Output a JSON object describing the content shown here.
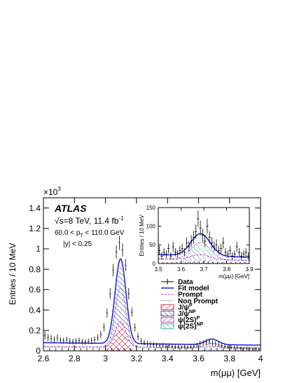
{
  "chart_data": [
    {
      "type": "line",
      "panel": "main",
      "exponent_label": "×10",
      "exponent_power": "3",
      "xlabel_main": "m(μμ) [GeV]",
      "ylabel": "Entries / 10 MeV",
      "xlim": [
        2.6,
        4.0
      ],
      "ylim": [
        0,
        1500
      ],
      "x_ticks": [
        "2.6",
        "2.8",
        "3",
        "3.2",
        "3.4",
        "3.6",
        "3.8",
        "4"
      ],
      "y_ticks": [
        "0",
        "0.2",
        "0.4",
        "0.6",
        "0.8",
        "1",
        "1.2",
        "1.4"
      ],
      "annotations": {
        "experiment": "ATLAS",
        "energy_lumi_prefix": "√s=8 TeV, 11.4 fb",
        "energy_lumi_sup": "-1",
        "pt_range": "60.0 < p",
        "pt_sub": "T",
        "pt_range_suffix": " < 110.0 GeV",
        "rapidity": "|y| < 0.25"
      },
      "legend": [
        {
          "key": "data",
          "label": "Data",
          "style": "marker",
          "color": "#000000"
        },
        {
          "key": "fit",
          "label": "Fit model",
          "style": "line",
          "color": "#1a1adb"
        },
        {
          "key": "prompt",
          "label": "Prompt",
          "style": "dashed",
          "color": "#e020e0"
        },
        {
          "key": "nonprompt",
          "label": "Non Prompt",
          "style": "dotted",
          "color": "#303080"
        },
        {
          "key": "jpsi_p",
          "label": "J/ψ",
          "sup": "P",
          "style": "hatch",
          "color": "#c01030"
        },
        {
          "key": "jpsi_np",
          "label": "J/ψ",
          "sup": "NP",
          "style": "hatch",
          "color": "#202080"
        },
        {
          "key": "psi2s_p",
          "label": "ψ(2S)",
          "sup": "P",
          "style": "hatch",
          "color": "#b020a0"
        },
        {
          "key": "psi2s_np",
          "label": "ψ(2S)",
          "sup": "NP",
          "style": "hatch",
          "color": "#20a0a0"
        }
      ],
      "data_points": {
        "x": [
          2.61,
          2.63,
          2.65,
          2.67,
          2.69,
          2.71,
          2.73,
          2.75,
          2.77,
          2.79,
          2.81,
          2.83,
          2.85,
          2.87,
          2.89,
          2.91,
          2.93,
          2.95,
          2.97,
          2.99,
          3.01,
          3.03,
          3.05,
          3.07,
          3.09,
          3.11,
          3.13,
          3.15,
          3.17,
          3.19,
          3.21,
          3.23,
          3.25,
          3.27,
          3.29,
          3.31,
          3.33,
          3.35,
          3.37,
          3.39,
          3.41,
          3.43,
          3.45,
          3.47,
          3.49,
          3.51,
          3.53,
          3.55,
          3.57,
          3.59,
          3.61,
          3.63,
          3.65,
          3.67,
          3.69,
          3.71,
          3.73,
          3.75,
          3.77,
          3.79,
          3.81,
          3.83,
          3.85,
          3.87,
          3.89,
          3.91,
          3.93,
          3.95,
          3.97,
          3.99
        ],
        "y": [
          150,
          130,
          120,
          110,
          125,
          105,
          100,
          110,
          95,
          90,
          95,
          100,
          90,
          85,
          95,
          100,
          110,
          130,
          160,
          230,
          370,
          560,
          790,
          970,
          1060,
          990,
          840,
          560,
          380,
          230,
          140,
          95,
          80,
          70,
          65,
          60,
          55,
          50,
          55,
          45,
          50,
          45,
          40,
          40,
          35,
          40,
          35,
          40,
          45,
          55,
          70,
          80,
          85,
          90,
          75,
          70,
          60,
          50,
          45,
          40,
          35,
          30,
          30,
          25,
          20,
          25,
          20,
          15,
          20,
          15
        ],
        "err": [
          40,
          35,
          35,
          30,
          35,
          30,
          30,
          30,
          28,
          28,
          28,
          30,
          28,
          27,
          28,
          30,
          30,
          32,
          35,
          40,
          45,
          55,
          60,
          65,
          70,
          65,
          60,
          55,
          45,
          40,
          35,
          30,
          28,
          27,
          26,
          25,
          24,
          23,
          24,
          22,
          23,
          22,
          21,
          21,
          20,
          21,
          20,
          21,
          22,
          23,
          26,
          28,
          29,
          30,
          28,
          27,
          25,
          23,
          22,
          21,
          20,
          19,
          19,
          18,
          17,
          18,
          17,
          16,
          17,
          16
        ]
      },
      "fit": {
        "background": 80,
        "jpsi_mean": 3.097,
        "jpsi_sigma": 0.035,
        "jpsi_prompt_amp": 250,
        "jpsi_nonprompt_amp": 580,
        "psi2s_mean": 3.686,
        "psi2s_sigma": 0.042,
        "psi2s_prompt_amp": 12,
        "psi2s_nonprompt_amp": 42
      }
    },
    {
      "type": "line",
      "panel": "inset",
      "xlabel_inset": "m(μμ) [GeV]",
      "ylabel": "Entries / 10 MeV",
      "xlim": [
        3.5,
        3.9
      ],
      "ylim": [
        0,
        150
      ],
      "x_ticks": [
        "3.5",
        "3.6",
        "3.7",
        "3.8",
        "3.9"
      ],
      "y_ticks": [
        "0",
        "50",
        "100",
        "150"
      ],
      "data_points": {
        "x": [
          3.505,
          3.515,
          3.525,
          3.535,
          3.545,
          3.555,
          3.565,
          3.575,
          3.585,
          3.595,
          3.605,
          3.615,
          3.625,
          3.635,
          3.645,
          3.655,
          3.665,
          3.675,
          3.685,
          3.695,
          3.705,
          3.715,
          3.725,
          3.735,
          3.745,
          3.755,
          3.765,
          3.775,
          3.785,
          3.795,
          3.805,
          3.815,
          3.825,
          3.835,
          3.845,
          3.855,
          3.865,
          3.875,
          3.885,
          3.895
        ],
        "y": [
          35,
          20,
          30,
          25,
          40,
          20,
          45,
          30,
          25,
          35,
          40,
          30,
          55,
          45,
          60,
          70,
          85,
          120,
          95,
          75,
          60,
          100,
          70,
          55,
          45,
          50,
          35,
          40,
          55,
          30,
          25,
          35,
          20,
          25,
          45,
          30,
          20,
          25,
          30,
          20
        ],
        "err": [
          12,
          10,
          11,
          10,
          13,
          10,
          14,
          11,
          10,
          12,
          13,
          11,
          15,
          14,
          16,
          17,
          19,
          22,
          20,
          18,
          16,
          20,
          17,
          15,
          14,
          15,
          12,
          13,
          15,
          11,
          10,
          12,
          10,
          10,
          14,
          11,
          10,
          10,
          11,
          10
        ]
      }
    }
  ]
}
